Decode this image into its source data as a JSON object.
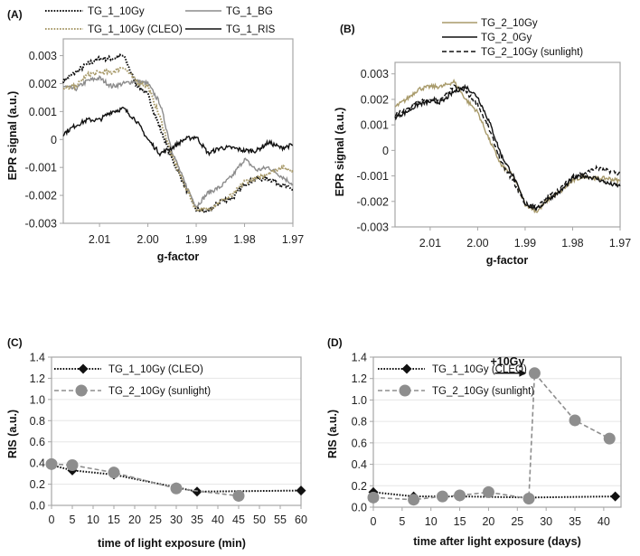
{
  "colors": {
    "black": "#111111",
    "gray": "#8c8c8c",
    "olive": "#a89a6a",
    "marker_gray": "#8e8e8e",
    "frame": "#a6a6a6",
    "grid": "#e6e6e6"
  },
  "chart_data": [
    {
      "panel": "(A)",
      "type": "line",
      "xlabel": "g-factor",
      "ylabel": "EPR signal (a.u.)",
      "xlim": [
        2.0175,
        1.97
      ],
      "ylim": [
        -0.003,
        0.0036
      ],
      "xticks": [
        2.01,
        2.0,
        1.99,
        1.98,
        1.97
      ],
      "xtick_labels": [
        "2.01",
        "2.00",
        "1.99",
        "1.98",
        "1.97"
      ],
      "yticks": [
        0.003,
        0.002,
        0.001,
        0,
        -0.001,
        -0.002,
        -0.003
      ],
      "ytick_labels": [
        "0.003",
        "0.002",
        "0.001",
        "0",
        "-0.001",
        "-0.002",
        "-0.003"
      ],
      "grid": false,
      "legend": "top",
      "x": [
        2.0175,
        2.015,
        2.0125,
        2.01,
        2.0075,
        2.005,
        2.0025,
        2.0,
        1.9975,
        1.995,
        1.9925,
        1.99,
        1.9875,
        1.985,
        1.9825,
        1.98,
        1.9775,
        1.975,
        1.9725,
        1.97
      ],
      "series": [
        {
          "name": "TG_1_10Gy",
          "style": "dotted",
          "color": "#111111",
          "values": [
            0.0021,
            0.0024,
            0.0027,
            0.0029,
            0.0029,
            0.003,
            0.002,
            0.0016,
            0.0004,
            -0.0007,
            -0.0016,
            -0.0025,
            -0.0026,
            -0.0022,
            -0.0021,
            -0.0016,
            -0.0014,
            -0.0014,
            -0.0016,
            -0.0018
          ]
        },
        {
          "name": "TG_1_BG",
          "style": "solid",
          "color": "#8c8c8c",
          "values": [
            0.0019,
            0.0018,
            0.0021,
            0.0022,
            0.0019,
            0.002,
            0.0021,
            0.002,
            0.0013,
            -0.0004,
            -0.0015,
            -0.0024,
            -0.0019,
            -0.0017,
            -0.0013,
            -0.0007,
            -0.0011,
            -0.001,
            -0.0013,
            -0.0016
          ]
        },
        {
          "name": "TG_1_10Gy (CLEO)",
          "style": "dotted",
          "color": "#a89a6a",
          "values": [
            0.0018,
            0.0019,
            0.0023,
            0.0024,
            0.0024,
            0.0026,
            0.0021,
            0.0019,
            0.0008,
            -0.0006,
            -0.0016,
            -0.0025,
            -0.0025,
            -0.0022,
            -0.002,
            -0.0015,
            -0.0014,
            -0.0012,
            -0.001,
            -0.0011
          ]
        },
        {
          "name": "TG_1_RIS",
          "style": "solid",
          "color": "#111111",
          "values": [
            0.0002,
            0.0005,
            0.0007,
            0.0007,
            0.001,
            0.0011,
            0.0007,
            0.0,
            -0.0005,
            -0.0003,
            0.0,
            0.0001,
            -0.0005,
            -0.0003,
            -0.0003,
            -0.0004,
            -0.0004,
            -0.0001,
            -0.0003,
            -0.0002
          ]
        }
      ]
    },
    {
      "panel": "(B)",
      "type": "line",
      "xlabel": "g-factor",
      "ylabel": "EPR signal (a.u.)",
      "xlim": [
        2.0174,
        1.97
      ],
      "ylim": [
        -0.003,
        0.00345
      ],
      "xticks": [
        2.01,
        2.0,
        1.99,
        1.98,
        1.97
      ],
      "xtick_labels": [
        "2.01",
        "2.00",
        "1.99",
        "1.98",
        "1.97"
      ],
      "yticks": [
        0.003,
        0.002,
        0.001,
        0,
        -0.001,
        -0.002,
        -0.003
      ],
      "ytick_labels": [
        "0.003",
        "0.002",
        "0.001",
        "0",
        "-0.001",
        "-0.002",
        "-0.003"
      ],
      "grid": false,
      "legend": "top",
      "x": [
        2.0174,
        2.015,
        2.0125,
        2.01,
        2.0075,
        2.005,
        2.0025,
        2.0,
        1.9975,
        1.995,
        1.9925,
        1.99,
        1.9875,
        1.985,
        1.9825,
        1.98,
        1.9775,
        1.975,
        1.9725,
        1.97
      ],
      "series": [
        {
          "name": "TG_2_10Gy",
          "style": "solid",
          "color": "#a89a6a",
          "values": [
            0.0017,
            0.002,
            0.0024,
            0.0025,
            0.0025,
            0.0027,
            0.002,
            0.0015,
            0.0004,
            -0.0006,
            -0.001,
            -0.0021,
            -0.0024,
            -0.0019,
            -0.0016,
            -0.0012,
            -0.001,
            -0.0011,
            -0.0011,
            -0.0012
          ]
        },
        {
          "name": "TG_2_0Gy",
          "style": "solid",
          "color": "#111111",
          "values": [
            0.0013,
            0.0015,
            0.0018,
            0.0019,
            0.0019,
            0.0023,
            0.0025,
            0.0021,
            0.0011,
            -0.0002,
            -0.001,
            -0.0021,
            -0.0023,
            -0.0019,
            -0.0016,
            -0.0011,
            -0.001,
            -0.0011,
            -0.0013,
            -0.0014
          ]
        },
        {
          "name": "TG_2_10Gy (sunlight)",
          "style": "dashed",
          "color": "#111111",
          "values": [
            0.0014,
            0.0016,
            0.0019,
            0.002,
            0.002,
            0.0025,
            0.0023,
            0.0018,
            0.0008,
            -0.0005,
            -0.0012,
            -0.0021,
            -0.0022,
            -0.0018,
            -0.0015,
            -0.001,
            -0.0009,
            -0.0007,
            -0.0008,
            -0.0009
          ]
        }
      ]
    },
    {
      "panel": "(C)",
      "type": "line",
      "xlabel": "time of light exposure (min)",
      "ylabel": "RIS (a.u.)",
      "xlim": [
        0,
        60
      ],
      "ylim": [
        0,
        1.4
      ],
      "xticks": [
        0,
        5,
        10,
        15,
        20,
        25,
        30,
        35,
        40,
        45,
        50,
        55,
        60
      ],
      "xtick_labels": [
        "0",
        "5",
        "10",
        "15",
        "20",
        "25",
        "30",
        "35",
        "40",
        "45",
        "50",
        "55",
        "60"
      ],
      "yticks": [
        0,
        0.2,
        0.4,
        0.6,
        0.8,
        1.0,
        1.2,
        1.4
      ],
      "ytick_labels": [
        "0.0",
        "0.2",
        "0.4",
        "0.6",
        "0.8",
        "1.0",
        "1.2",
        "1.4"
      ],
      "grid": true,
      "legend": "top-left",
      "series": [
        {
          "name": "TG_1_10Gy (CLEO)",
          "style": "dotted",
          "marker": "diamond",
          "color": "#111111",
          "x": [
            0,
            5,
            15,
            30,
            35,
            60
          ],
          "values": [
            0.38,
            0.33,
            0.29,
            0.17,
            0.13,
            0.14
          ]
        },
        {
          "name": "TG_2_10Gy (sunlight)",
          "style": "dashed",
          "marker": "circle",
          "color": "#8e8e8e",
          "x": [
            0,
            5,
            15,
            30,
            45
          ],
          "values": [
            0.39,
            0.38,
            0.31,
            0.16,
            0.09
          ]
        }
      ]
    },
    {
      "panel": "(D)",
      "type": "line",
      "xlabel": "time after light exposure (days)",
      "ylabel": "RIS (a.u.)",
      "xlim": [
        0,
        43
      ],
      "ylim": [
        0,
        1.4
      ],
      "xticks": [
        0,
        5,
        10,
        15,
        20,
        25,
        30,
        35,
        40
      ],
      "xtick_labels": [
        "0",
        "5",
        "10",
        "15",
        "20",
        "25",
        "30",
        "35",
        "40"
      ],
      "yticks": [
        0,
        0.2,
        0.4,
        0.6,
        0.8,
        1.0,
        1.2,
        1.4
      ],
      "ytick_labels": [
        "0.0",
        "0.2",
        "0.4",
        "0.6",
        "0.8",
        "1.0",
        "1.2",
        "1.4"
      ],
      "grid": true,
      "legend": "top-left",
      "annotation": {
        "text": "+10Gy",
        "x": 28,
        "y": 1.25
      },
      "series": [
        {
          "name": "TG_1_10Gy (CLEO)",
          "style": "dotted",
          "marker": "diamond",
          "color": "#111111",
          "x": [
            0,
            7,
            15,
            27,
            42
          ],
          "values": [
            0.14,
            0.1,
            0.1,
            0.09,
            0.1
          ]
        },
        {
          "name": "TG_2_10Gy (sunlight)",
          "style": "dashed",
          "marker": "circle",
          "color": "#8e8e8e",
          "x": [
            0,
            7,
            12,
            15,
            20,
            27,
            28,
            35,
            41
          ],
          "values": [
            0.09,
            0.07,
            0.1,
            0.11,
            0.14,
            0.08,
            1.25,
            0.81,
            0.64
          ]
        }
      ]
    }
  ]
}
